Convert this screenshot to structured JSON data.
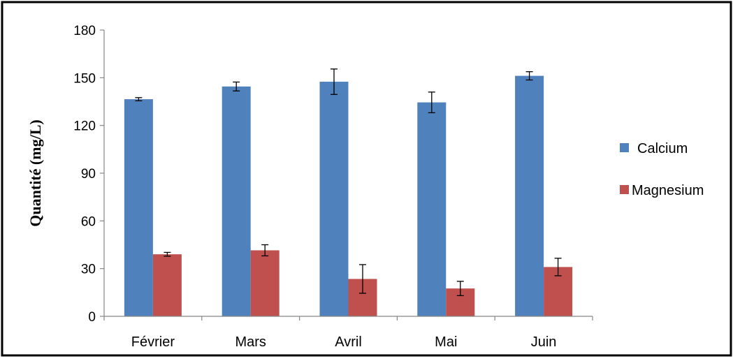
{
  "chart_data": {
    "type": "bar",
    "title": "",
    "xlabel": "",
    "ylabel": "Quantité  (mg/L)",
    "categories": [
      "Février",
      "Mars",
      "Avril",
      "Mai",
      "Juin"
    ],
    "ylim": [
      0,
      180
    ],
    "yticks": [
      0,
      30,
      60,
      90,
      120,
      150,
      180
    ],
    "yticklabels": [
      "0",
      "30",
      "60",
      "90",
      "120",
      "150",
      "180"
    ],
    "grid": false,
    "legend_position": "right",
    "series": [
      {
        "name": "Calcium",
        "color": "#4f81bd",
        "values": [
          136.5,
          144.5,
          147.5,
          134.5,
          151.2
        ],
        "errors": [
          1.0,
          2.8,
          8.0,
          6.5,
          2.6
        ]
      },
      {
        "name": "Magnesium",
        "color": "#c0504d",
        "values": [
          39.0,
          41.5,
          23.5,
          17.5,
          31.0
        ],
        "errors": [
          1.2,
          3.5,
          9.0,
          4.5,
          5.5
        ]
      }
    ]
  }
}
